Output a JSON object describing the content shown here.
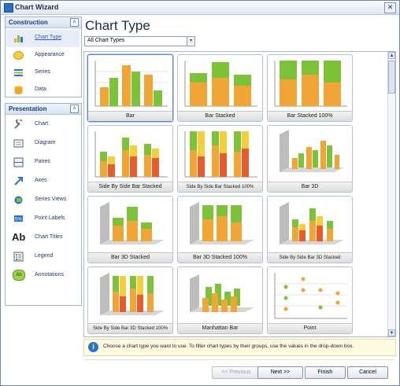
{
  "window": {
    "title": "Chart Wizard",
    "close_glyph": "✕"
  },
  "sidebar": {
    "construction": {
      "title": "Construction",
      "collapse_glyph": "˄",
      "items": [
        {
          "label": "Chart Type",
          "icon": "chart-type-icon",
          "selected": true
        },
        {
          "label": "Appearance",
          "icon": "appearance-icon"
        },
        {
          "label": "Series",
          "icon": "series-icon"
        },
        {
          "label": "Data",
          "icon": "data-icon"
        }
      ]
    },
    "presentation": {
      "title": "Presentation",
      "collapse_glyph": "˄",
      "items": [
        {
          "label": "Chart",
          "icon": "wrench-icon"
        },
        {
          "label": "Diagram",
          "icon": "diagram-icon"
        },
        {
          "label": "Panes",
          "icon": "panes-icon"
        },
        {
          "label": "Axes",
          "icon": "axes-icon"
        },
        {
          "label": "Series Views",
          "icon": "series-views-icon"
        },
        {
          "label": "Point Labels",
          "icon": "point-labels-icon"
        },
        {
          "label": "Chart Titles",
          "icon": "chart-titles-icon",
          "glyph": "Ab"
        },
        {
          "label": "Legend",
          "icon": "legend-icon"
        },
        {
          "label": "Annotations",
          "icon": "annotations-icon",
          "glyph": "Ab"
        }
      ]
    }
  },
  "main": {
    "heading": "Chart Type",
    "filter": {
      "value": "All Chart Types",
      "arrow": "▾"
    },
    "scroll": {
      "up": "▲",
      "down": "▼"
    },
    "chart_types": [
      {
        "label": "Bar",
        "selected": true
      },
      {
        "label": "Bar Stacked"
      },
      {
        "label": "Bar Stacked 100%"
      },
      {
        "label": "Side By Side Bar Stacked"
      },
      {
        "label": "Side By Side Bar Stacked 100%"
      },
      {
        "label": "Bar 3D"
      },
      {
        "label": "Bar 3D Stacked"
      },
      {
        "label": "Bar 3D Stacked 100%"
      },
      {
        "label": "Side By Side Bar 3D Stacked"
      },
      {
        "label": "Side By Side Bar 3D Stacked 100%"
      },
      {
        "label": "Manhattan Bar"
      },
      {
        "label": "Point"
      }
    ],
    "hint": {
      "icon_glyph": "i",
      "text": "Choose a chart type you want to use. To filter chart types by their groups, use the values in the drop-down box."
    }
  },
  "buttons": {
    "previous": "<< Previous",
    "next": "Next >>",
    "finish": "Finish",
    "cancel": "Cancel"
  },
  "colors": {
    "orange": "#f0a535",
    "green": "#7cc33a",
    "red": "#e85b2c",
    "yellow": "#f2cf3b",
    "accent": "#2a5fb8"
  }
}
